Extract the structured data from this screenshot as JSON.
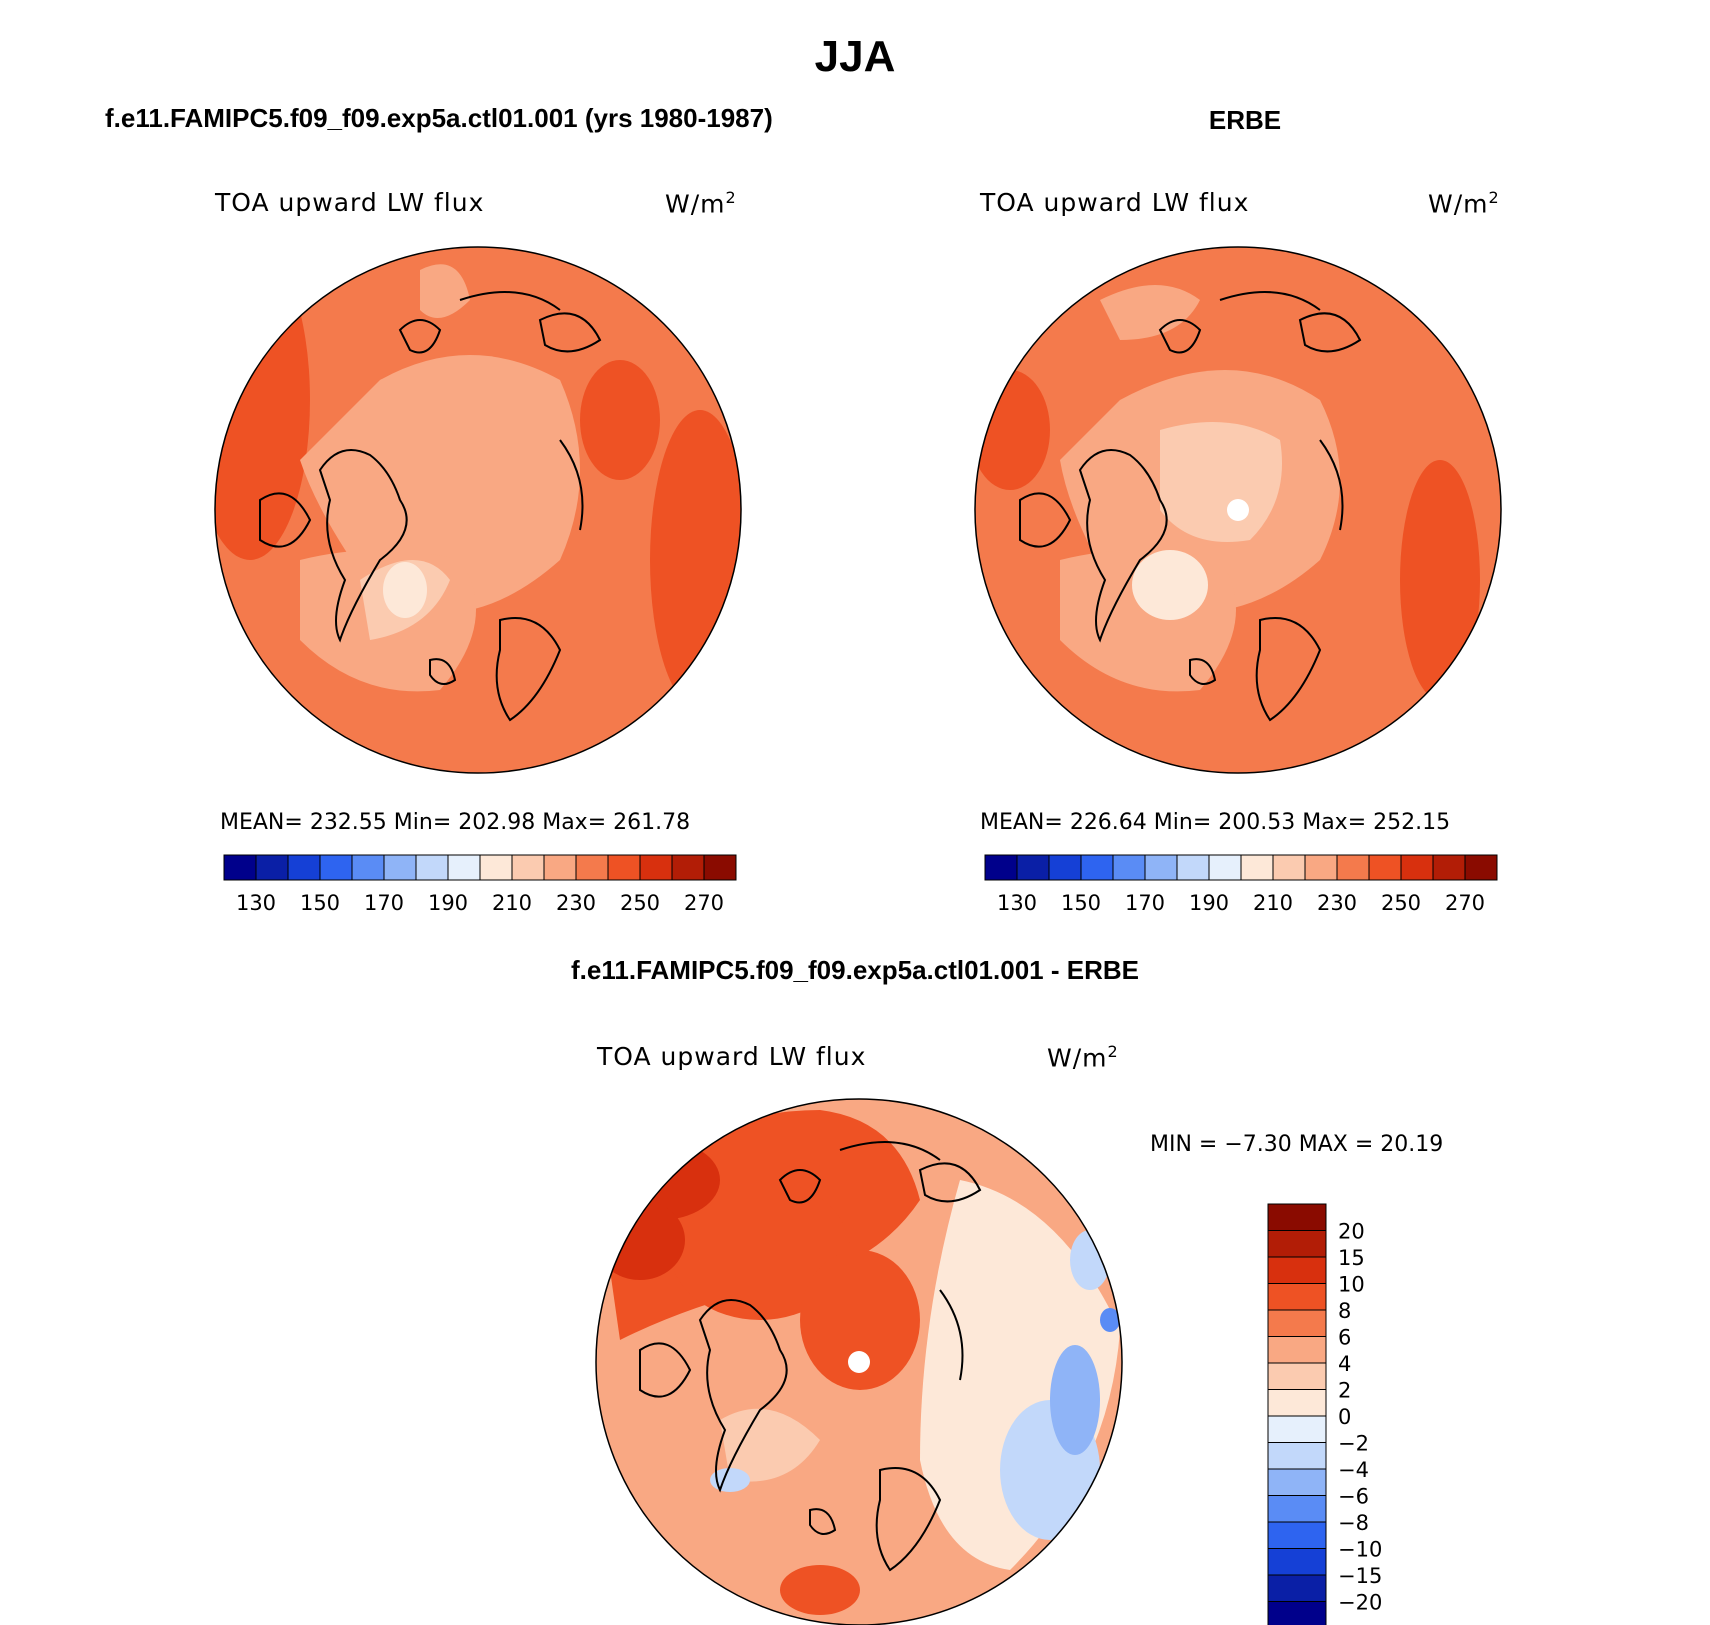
{
  "figure_title": "JJA",
  "colors": {
    "land_outline": "#000000",
    "abs_scale": [
      "#00008b",
      "#0a1fa6",
      "#1540d6",
      "#2e64f0",
      "#5a8cf5",
      "#8fb4f7",
      "#c2d8fa",
      "#e6f0fc",
      "#fde8d8",
      "#fbcbb0",
      "#f9a883",
      "#f47a4c",
      "#ee5224",
      "#d8300e",
      "#b21d06",
      "#8a0b00"
    ],
    "diff_scale": [
      "#00008b",
      "#0a1fa6",
      "#1540d6",
      "#2e64f0",
      "#5a8cf5",
      "#8fb4f7",
      "#c2d8fa",
      "#e6f0fc",
      "#fde8d8",
      "#fbcbb0",
      "#f9a883",
      "#f47a4c",
      "#ee5224",
      "#d8300e",
      "#b21d06",
      "#8a0b00"
    ]
  },
  "panels": {
    "model": {
      "header": "f.e11.FAMIPC5.f09_f09.exp5a.ctl01.001 (yrs 1980-1987)",
      "variable": "TOA upward LW flux",
      "units": "W/m",
      "units_exp": "2",
      "stats": "MEAN= 232.55   Min= 202.98   Max= 261.78"
    },
    "obs": {
      "header": "ERBE",
      "variable": "TOA upward LW flux",
      "units": "W/m",
      "units_exp": "2",
      "stats": "MEAN= 226.64   Min= 200.53   Max= 252.15"
    },
    "diff": {
      "header": "f.e11.FAMIPC5.f09_f09.exp5a.ctl01.001 - ERBE",
      "variable": "TOA upward LW flux",
      "units": "W/m",
      "units_exp": "2",
      "minmax": "MIN =   −7.30 MAX =   20.19"
    }
  },
  "chart_data": [
    {
      "type": "heatmap",
      "projection": "north polar stereographic",
      "title": "TOA upward LW flux",
      "dataset": "f.e11.FAMIPC5.f09_f09.exp5a.ctl01.001 (yrs 1980-1987)",
      "units": "W/m2",
      "mean": 232.55,
      "min": 202.98,
      "max": 261.78,
      "contour_levels": [
        130,
        140,
        150,
        160,
        170,
        180,
        190,
        200,
        210,
        220,
        230,
        240,
        250,
        260,
        270
      ],
      "colorbar_tick_labels": [
        "130",
        "150",
        "170",
        "190",
        "210",
        "230",
        "250",
        "270"
      ]
    },
    {
      "type": "heatmap",
      "projection": "north polar stereographic",
      "title": "TOA upward LW flux",
      "dataset": "ERBE",
      "units": "W/m2",
      "mean": 226.64,
      "min": 200.53,
      "max": 252.15,
      "contour_levels": [
        130,
        140,
        150,
        160,
        170,
        180,
        190,
        200,
        210,
        220,
        230,
        240,
        250,
        260,
        270
      ],
      "colorbar_tick_labels": [
        "130",
        "150",
        "170",
        "190",
        "210",
        "230",
        "250",
        "270"
      ]
    },
    {
      "type": "heatmap",
      "projection": "north polar stereographic",
      "title": "TOA upward LW flux",
      "dataset": "f.e11.FAMIPC5.f09_f09.exp5a.ctl01.001 - ERBE",
      "units": "W/m2",
      "min": -7.3,
      "max": 20.19,
      "contour_levels": [
        -20,
        -15,
        -10,
        -8,
        -6,
        -4,
        -2,
        0,
        2,
        4,
        6,
        8,
        10,
        15,
        20
      ],
      "colorbar_tick_labels": [
        "20",
        "15",
        "10",
        "8",
        "6",
        "4",
        "2",
        "0",
        "−2",
        "−4",
        "−6",
        "−8",
        "−10",
        "−15",
        "−20"
      ]
    }
  ]
}
